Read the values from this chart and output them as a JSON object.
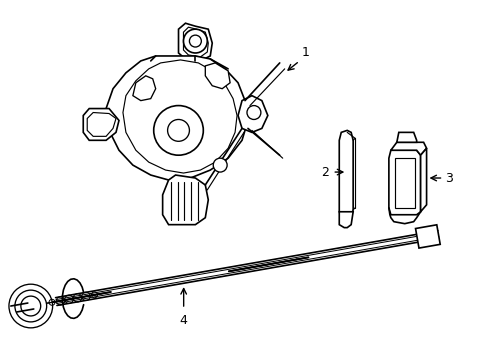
{
  "background_color": "#ffffff",
  "line_color": "#000000",
  "line_width": 1.2,
  "label_fontsize": 9
}
